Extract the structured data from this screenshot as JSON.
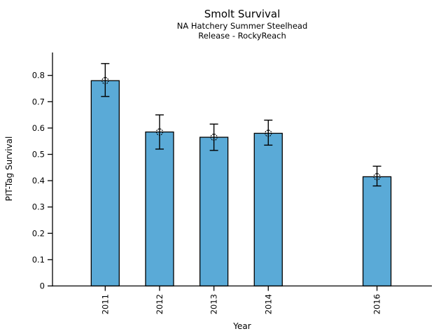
{
  "chart_data": {
    "type": "bar",
    "title": "Smolt Survival",
    "subtitles": [
      "NA Hatchery Summer Steelhead",
      "Release - RockyReach"
    ],
    "xlabel": "Year",
    "ylabel": "PIT-Tag Survival",
    "categories": [
      2011,
      2012,
      2013,
      2014,
      2016
    ],
    "values": [
      0.78,
      0.585,
      0.565,
      0.58,
      0.415
    ],
    "error_low": [
      0.72,
      0.52,
      0.515,
      0.535,
      0.38
    ],
    "error_high": [
      0.845,
      0.65,
      0.615,
      0.63,
      0.455
    ],
    "yticks": [
      0,
      0.1,
      0.2,
      0.3,
      0.4,
      0.5,
      0.6,
      0.7,
      0.8
    ],
    "ytick_labels": [
      "0",
      "0.1",
      "0.2",
      "0.3",
      "0.4",
      "0.5",
      "0.6",
      "0.7",
      "0.8"
    ],
    "xtick_labels": [
      "2011",
      "2012",
      "2013",
      "2014",
      "2016"
    ],
    "xlim": [
      2010.03,
      2017.01
    ],
    "ylim": [
      0,
      0.887
    ],
    "grid": false,
    "legend": null,
    "bar_color": "#5AAAD7",
    "bar_edge_color": "#000000",
    "error_bar_color": "#000000",
    "marker": "open-circle-dotted",
    "axis_color": "#000000"
  }
}
